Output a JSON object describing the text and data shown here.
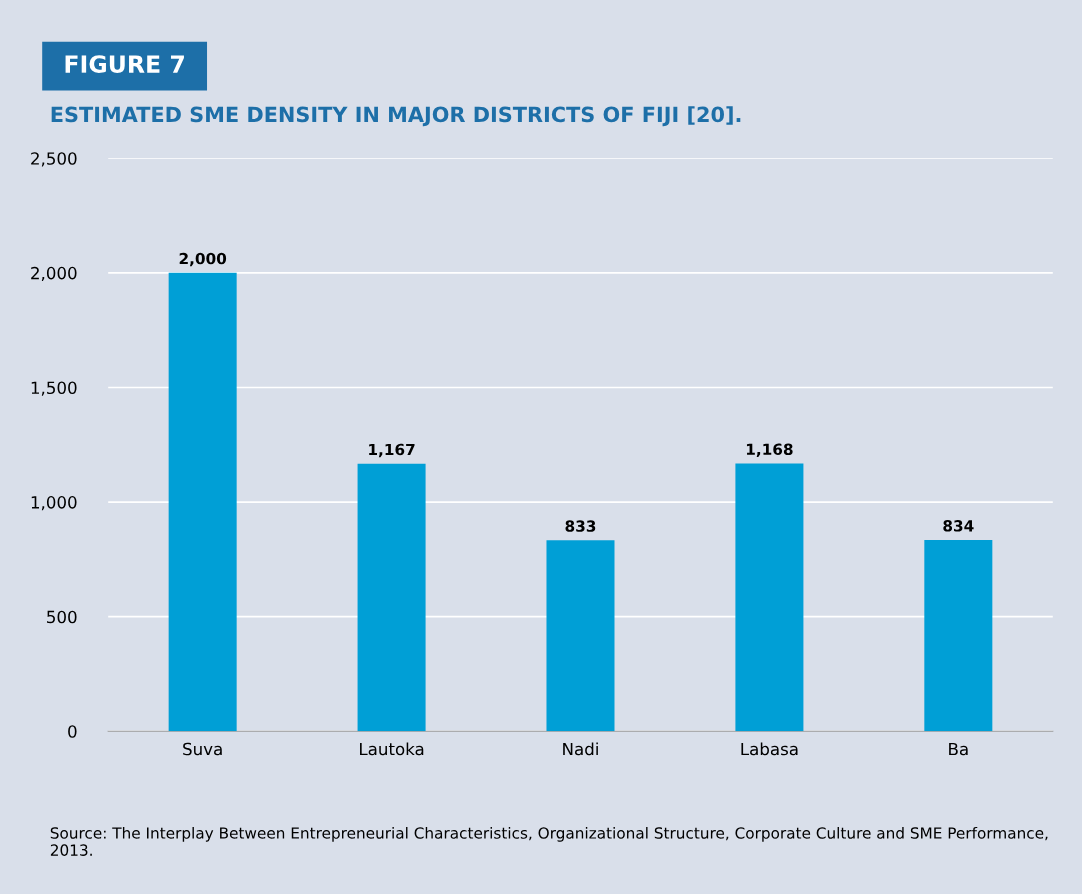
{
  "chart_data": {
    "type": "bar",
    "title": "FIGURE 7",
    "subtitle": "ESTIMATED SME DENSITY IN MAJOR DISTRICTS OF FIJI [20].",
    "categories": [
      "Suva",
      "Lautoka",
      "Nadi",
      "Labasa",
      "Ba"
    ],
    "values": [
      2000,
      1167,
      833,
      1168,
      834
    ],
    "color": "#009fd6",
    "ylim": [
      0,
      2500
    ],
    "yticks": [
      0,
      500,
      {
        "value": 1000,
        "label": "1,000"
      },
      {
        "value": 1500,
        "label": "1,500"
      },
      {
        "value": 2000,
        "label": "2,000"
      },
      {
        "value": 2500,
        "label": "2,500"
      }
    ],
    "grid": "y",
    "value_labels": [
      "2,000",
      "1,167",
      "833",
      "1,168",
      "834"
    ],
    "annotations": [
      "Source: The Interplay Between Entrepreneurial Characteristics, Organizational Structure, Corporate Culture and SME Performance, 2013."
    ]
  }
}
